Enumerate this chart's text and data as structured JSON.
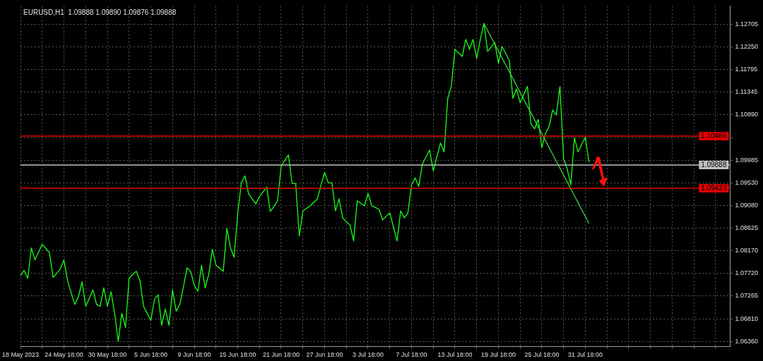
{
  "chart_data": {
    "type": "line",
    "title": "EURUSD,H1  1.09888 1.09890 1.09876 1.09888",
    "categories": [
      "18 May 2023",
      null,
      null,
      null,
      null,
      null,
      null,
      null,
      null,
      null,
      null,
      null,
      "24 May 18:00",
      null,
      null,
      null,
      null,
      null,
      null,
      null,
      null,
      null,
      null,
      null,
      "30 May 18:00",
      null,
      null,
      null,
      null,
      null,
      null,
      null,
      null,
      null,
      null,
      null,
      "5 Jun 18:00",
      null,
      null,
      null,
      null,
      null,
      null,
      null,
      null,
      null,
      null,
      null,
      "9 Jun 18:00",
      null,
      null,
      null,
      null,
      null,
      null,
      null,
      null,
      null,
      null,
      null,
      "15 Jun 18:00",
      null,
      null,
      null,
      null,
      null,
      null,
      null,
      null,
      null,
      null,
      null,
      "21 Jun 18:00",
      null,
      null,
      null,
      null,
      null,
      null,
      null,
      null,
      null,
      null,
      null,
      "27 Jun 18:00",
      null,
      null,
      null,
      null,
      null,
      null,
      null,
      null,
      null,
      null,
      null,
      "3 Jul 18:00",
      null,
      null,
      null,
      null,
      null,
      null,
      null,
      null,
      null,
      null,
      null,
      "7 Jul 18:00",
      null,
      null,
      null,
      null,
      null,
      null,
      null,
      null,
      null,
      null,
      null,
      "13 Jul 18:00",
      null,
      null,
      null,
      null,
      null,
      null,
      null,
      null,
      null,
      null,
      null,
      "19 Jul 18:00",
      null,
      null,
      null,
      null,
      null,
      null,
      null,
      null,
      null,
      null,
      null,
      "25 Jul 18:00",
      null,
      null,
      null,
      null,
      null,
      null,
      null,
      null,
      null,
      null,
      null,
      "31 Jul 18:00",
      null,
      null,
      null,
      null,
      null,
      null,
      null,
      null,
      null,
      null,
      null,
      null,
      null,
      null,
      null,
      null,
      null,
      null,
      null,
      null,
      null,
      null,
      null,
      null,
      null,
      null,
      null,
      null,
      null,
      null,
      null,
      null,
      null,
      null,
      null,
      null,
      null,
      null,
      null,
      null
    ],
    "series": [
      {
        "color": "#19ff19",
        "values": [
          1.0767,
          1.0778,
          1.0762,
          1.0823,
          1.0799,
          1.0815,
          1.083,
          1.0822,
          1.0813,
          1.0764,
          1.0772,
          1.0781,
          1.0799,
          1.0757,
          1.0733,
          1.071,
          1.0725,
          1.0755,
          1.0706,
          1.0722,
          1.0739,
          1.071,
          1.0706,
          1.0743,
          1.0706,
          1.0735,
          1.0692,
          1.0636,
          1.0692,
          1.0664,
          1.0762,
          1.077,
          1.0776,
          1.0757,
          1.0706,
          1.0692,
          1.0678,
          1.072,
          1.0729,
          1.0668,
          1.0701,
          1.0668,
          1.0739,
          1.0696,
          1.071,
          1.0745,
          1.0783,
          1.0776,
          1.0748,
          1.0736,
          1.0788,
          1.0743,
          1.077,
          1.082,
          1.0788,
          1.0782,
          1.0776,
          1.0862,
          1.0823,
          1.0804,
          1.0893,
          1.0953,
          1.0967,
          1.0931,
          1.0921,
          1.0911,
          1.0925,
          1.0935,
          1.0945,
          1.0896,
          1.0906,
          1.0917,
          1.0987,
          1.0998,
          1.1009,
          1.0952,
          1.0952,
          1.0847,
          1.0897,
          1.0902,
          1.0907,
          1.0914,
          1.0921,
          1.0948,
          1.0974,
          1.0953,
          1.0953,
          1.0897,
          1.0921,
          1.0883,
          1.0875,
          1.0869,
          1.0837,
          1.0917,
          1.0912,
          1.0907,
          1.0932,
          1.0907,
          1.0904,
          1.09,
          1.0879,
          1.0886,
          1.0893,
          1.0865,
          1.0837,
          1.0897,
          1.0883,
          1.0893,
          1.0949,
          1.0963,
          1.0946,
          1.0991,
          1.1005,
          1.1019,
          1.0977,
          1.1005,
          1.1033,
          1.1015,
          1.1122,
          1.1146,
          1.122,
          1.1213,
          1.1206,
          1.124,
          1.122,
          1.124,
          1.1202,
          1.124,
          1.1272,
          1.1216,
          1.1225,
          1.1234,
          1.1192,
          1.1226,
          1.1212,
          1.1198,
          1.1122,
          1.1141,
          1.1113,
          1.113,
          1.1146,
          1.1071,
          1.1061,
          1.108,
          1.1024,
          1.1052,
          1.1066,
          1.1099,
          1.1089,
          1.1146,
          1.1001,
          1.0981,
          1.0949,
          1.1043,
          1.1015,
          1.103,
          1.1044,
          1.0995,
          null,
          null,
          null,
          null,
          null,
          null,
          null,
          null,
          null,
          null,
          null,
          null,
          null,
          null,
          null,
          null,
          null,
          null,
          null,
          null,
          null,
          null,
          null,
          null,
          null,
          null,
          null,
          null,
          null,
          null,
          null,
          null,
          null,
          null,
          null,
          null,
          null,
          null,
          null
        ]
      },
      {
        "color": "#40d040",
        "values": [
          null,
          null,
          null,
          null,
          null,
          null,
          null,
          null,
          null,
          null,
          null,
          null,
          null,
          null,
          null,
          null,
          null,
          null,
          null,
          null,
          null,
          null,
          null,
          null,
          null,
          null,
          null,
          null,
          null,
          null,
          null,
          null,
          null,
          null,
          null,
          null,
          null,
          null,
          null,
          null,
          null,
          null,
          null,
          null,
          null,
          null,
          null,
          null,
          null,
          null,
          null,
          null,
          null,
          null,
          null,
          null,
          null,
          null,
          null,
          null,
          null,
          null,
          null,
          null,
          null,
          null,
          null,
          null,
          null,
          null,
          null,
          null,
          null,
          null,
          null,
          null,
          null,
          null,
          null,
          null,
          null,
          null,
          null,
          null,
          null,
          null,
          null,
          null,
          null,
          null,
          null,
          null,
          null,
          null,
          null,
          null,
          null,
          null,
          null,
          null,
          null,
          null,
          null,
          null,
          null,
          null,
          null,
          null,
          null,
          null,
          null,
          null,
          null,
          null,
          null,
          null,
          null,
          null,
          null,
          null,
          null,
          null,
          null,
          null,
          null,
          null,
          null,
          null,
          1.1272,
          null,
          null,
          null,
          null,
          null,
          null,
          null,
          null,
          null,
          null,
          null,
          null,
          null,
          null,
          null,
          null,
          null,
          null,
          null,
          null,
          null,
          null,
          null,
          null,
          null,
          null,
          null,
          null,
          1.0872,
          null,
          null,
          null,
          null,
          null,
          null,
          null,
          null,
          null,
          null,
          null,
          null,
          null,
          null,
          null,
          null,
          null,
          null,
          null,
          null,
          null,
          null,
          null,
          null,
          null,
          null,
          null,
          null,
          null,
          null,
          null,
          null,
          null,
          null,
          null,
          null,
          null,
          null,
          null
        ]
      }
    ],
    "ylim": [
      1.0626,
      1.1307
    ],
    "yticks": [
      {
        "value": 1.0636,
        "label": "1.06360"
      },
      {
        "value": 1.0681,
        "label": "1.06810"
      },
      1.07265,
      {
        "value": 1.0772,
        "label": "1.07720"
      },
      {
        "value": 1.0817,
        "label": "1.08170"
      },
      1.08625,
      {
        "value": 1.0908,
        "label": "1.09080"
      },
      {
        "value": 1.0953,
        "label": "1.09530"
      },
      1.09985,
      {
        "value": 1.10435,
        "label": null
      },
      {
        "value": 1.1089,
        "label": "1.10890"
      },
      1.11345,
      1.11795,
      {
        "value": 1.1225,
        "label": "1.12250"
      },
      1.12705
    ],
    "ref_lines": [
      {
        "axis": "y",
        "value": 1.10466,
        "label": "1.10466",
        "color": "#e00000"
      },
      {
        "axis": "y",
        "value": 1.09423,
        "label": "1.09423",
        "color": "#e00000"
      },
      {
        "axis": "y",
        "value": 1.09888,
        "label": "1.09888",
        "color": "#c0c0c0"
      }
    ],
    "grid": true,
    "legend": false,
    "marker": "none"
  }
}
